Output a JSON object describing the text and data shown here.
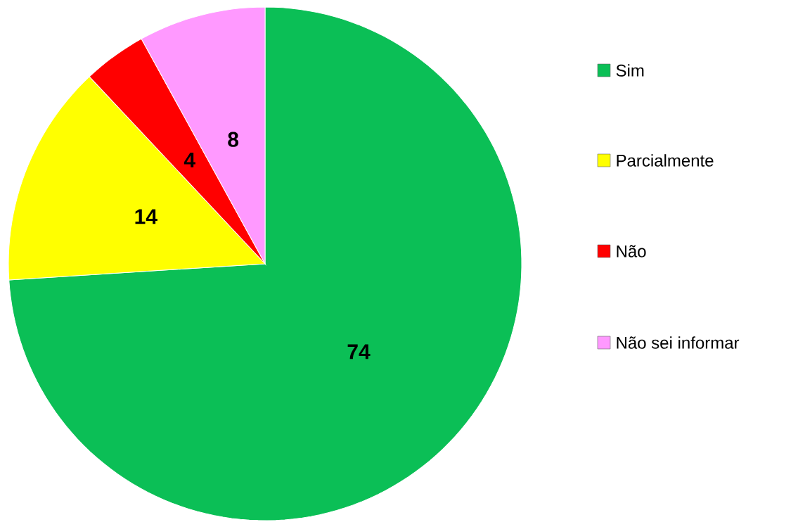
{
  "chart_data": {
    "type": "pie",
    "categories": [
      "Sim",
      "Parcialmente",
      "Não",
      "Não sei informar"
    ],
    "values": [
      74,
      14,
      4,
      8
    ],
    "colors": [
      "#0bbf56",
      "#ffff00",
      "#ff0000",
      "#ff99ff"
    ],
    "data_labels": true,
    "legend": "right"
  }
}
